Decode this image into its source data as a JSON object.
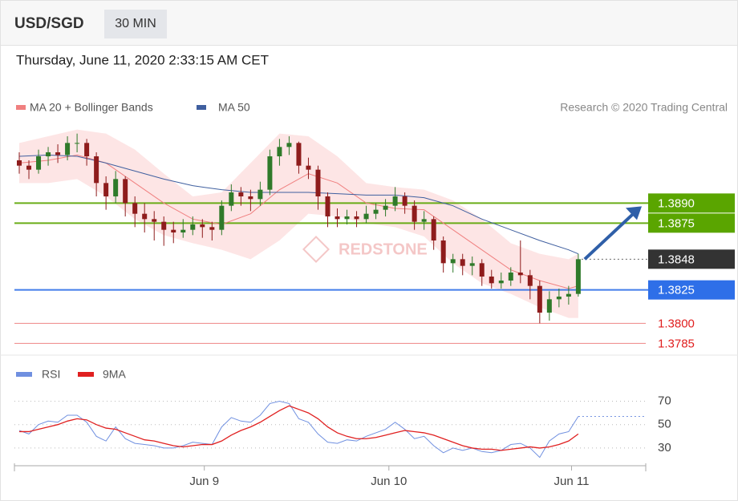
{
  "header": {
    "symbol": "USD/SGD",
    "timeframe": "30 MIN",
    "datetime": "Thursday, June 11, 2020 2:33:15 AM CET"
  },
  "chart_data": [
    {
      "type": "candlestick",
      "credit": "Research © 2020 Trading Central",
      "watermark": "REDSTONE",
      "xlim": [
        -0.5,
        65
      ],
      "ylim": [
        1.3778,
        1.3952
      ],
      "up_color": "#2f7a2a",
      "down_color": "#8e1c1c",
      "ohlc": [
        [
          1.3922,
          1.3928,
          1.3912,
          1.3918
        ],
        [
          1.3918,
          1.3922,
          1.3908,
          1.3915
        ],
        [
          1.3915,
          1.393,
          1.3912,
          1.3925
        ],
        [
          1.3925,
          1.3932,
          1.3918,
          1.3928
        ],
        [
          1.3928,
          1.3934,
          1.392,
          1.3926
        ],
        [
          1.3926,
          1.394,
          1.3922,
          1.3935
        ],
        [
          1.3935,
          1.3942,
          1.3928,
          1.3935
        ],
        [
          1.3935,
          1.3938,
          1.3918,
          1.3925
        ],
        [
          1.3925,
          1.3928,
          1.3895,
          1.3905
        ],
        [
          1.3905,
          1.391,
          1.3885,
          1.3895
        ],
        [
          1.3895,
          1.3914,
          1.389,
          1.3908
        ],
        [
          1.3908,
          1.391,
          1.388,
          1.389
        ],
        [
          1.389,
          1.3895,
          1.3872,
          1.3882
        ],
        [
          1.3882,
          1.389,
          1.3868,
          1.3878
        ],
        [
          1.3878,
          1.3884,
          1.3862,
          1.3876
        ],
        [
          1.3876,
          1.388,
          1.3858,
          1.387
        ],
        [
          1.387,
          1.3876,
          1.386,
          1.3868
        ],
        [
          1.3868,
          1.3878,
          1.3864,
          1.387
        ],
        [
          1.387,
          1.388,
          1.3866,
          1.3874
        ],
        [
          1.3874,
          1.3878,
          1.3864,
          1.3872
        ],
        [
          1.3872,
          1.3876,
          1.3862,
          1.387
        ],
        [
          1.387,
          1.3892,
          1.3866,
          1.3888
        ],
        [
          1.3888,
          1.3904,
          1.3884,
          1.3898
        ],
        [
          1.3898,
          1.3902,
          1.3888,
          1.3895
        ],
        [
          1.3895,
          1.39,
          1.3884,
          1.3893
        ],
        [
          1.3893,
          1.3906,
          1.3888,
          1.39
        ],
        [
          1.39,
          1.393,
          1.3896,
          1.3925
        ],
        [
          1.3925,
          1.3938,
          1.3918,
          1.3932
        ],
        [
          1.3932,
          1.394,
          1.3926,
          1.3935
        ],
        [
          1.3935,
          1.3936,
          1.3912,
          1.3918
        ],
        [
          1.3918,
          1.3924,
          1.3908,
          1.3915
        ],
        [
          1.3915,
          1.3918,
          1.3885,
          1.3895
        ],
        [
          1.3895,
          1.3898,
          1.3872,
          1.388
        ],
        [
          1.388,
          1.3886,
          1.3872,
          1.3878
        ],
        [
          1.3878,
          1.3885,
          1.3874,
          1.388
        ],
        [
          1.388,
          1.3884,
          1.3872,
          1.3878
        ],
        [
          1.3878,
          1.3888,
          1.3875,
          1.3882
        ],
        [
          1.3882,
          1.389,
          1.3878,
          1.3885
        ],
        [
          1.3885,
          1.3893,
          1.388,
          1.3888
        ],
        [
          1.3888,
          1.3902,
          1.3884,
          1.3895
        ],
        [
          1.3895,
          1.3898,
          1.3882,
          1.3888
        ],
        [
          1.3888,
          1.3892,
          1.387,
          1.3876
        ],
        [
          1.3876,
          1.3884,
          1.387,
          1.3878
        ],
        [
          1.3878,
          1.388,
          1.3855,
          1.3862
        ],
        [
          1.3862,
          1.3865,
          1.3838,
          1.3845
        ],
        [
          1.3845,
          1.3852,
          1.3838,
          1.3848
        ],
        [
          1.3848,
          1.3852,
          1.3836,
          1.3843
        ],
        [
          1.3843,
          1.385,
          1.3836,
          1.3845
        ],
        [
          1.3845,
          1.3848,
          1.3828,
          1.3835
        ],
        [
          1.3835,
          1.384,
          1.3826,
          1.383
        ],
        [
          1.383,
          1.3838,
          1.3826,
          1.3832
        ],
        [
          1.3832,
          1.3842,
          1.3828,
          1.3838
        ],
        [
          1.3838,
          1.3862,
          1.383,
          1.3836
        ],
        [
          1.3836,
          1.384,
          1.3818,
          1.3828
        ],
        [
          1.3828,
          1.3832,
          1.38,
          1.3808
        ],
        [
          1.3808,
          1.3824,
          1.3802,
          1.3818
        ],
        [
          1.3818,
          1.3826,
          1.3812,
          1.382
        ],
        [
          1.382,
          1.3828,
          1.3814,
          1.3822
        ],
        [
          1.3822,
          1.3852,
          1.382,
          1.3848
        ]
      ],
      "x": [
        0,
        3,
        6,
        9,
        12,
        15,
        18,
        21,
        24,
        27,
        30,
        33,
        36,
        39,
        42,
        45,
        48,
        51,
        54,
        57,
        58
      ],
      "series": [
        {
          "name": "MA 20 + Bollinger Bands",
          "color": "#f08080",
          "band_color": "#fde0e0",
          "values": [
            1.392,
            1.3922,
            1.3926,
            1.392,
            1.3905,
            1.389,
            1.3878,
            1.3874,
            1.3882,
            1.39,
            1.3912,
            1.3905,
            1.389,
            1.3886,
            1.3885,
            1.387,
            1.3855,
            1.384,
            1.3832,
            1.3826,
            1.3828
          ],
          "upper": [
            1.3935,
            1.394,
            1.3945,
            1.3942,
            1.393,
            1.3912,
            1.3895,
            1.3898,
            1.392,
            1.3942,
            1.394,
            1.3925,
            1.3905,
            1.3902,
            1.39,
            1.3892,
            1.3878,
            1.386,
            1.3852,
            1.3848,
            1.3852
          ],
          "lower": [
            1.3905,
            1.3905,
            1.3908,
            1.3895,
            1.3878,
            1.3866,
            1.386,
            1.3855,
            1.3848,
            1.3862,
            1.3882,
            1.388,
            1.3875,
            1.3872,
            1.3865,
            1.3845,
            1.383,
            1.3822,
            1.3812,
            1.3804,
            1.3804
          ]
        },
        {
          "name": "MA 50",
          "color": "#3f5f9f",
          "values": [
            1.3925,
            1.3926,
            1.3925,
            1.392,
            1.3914,
            1.3908,
            1.3903,
            1.39,
            1.3898,
            1.3898,
            1.3898,
            1.3897,
            1.3896,
            1.3896,
            1.3894,
            1.3888,
            1.3878,
            1.387,
            1.3862,
            1.3855,
            1.3852
          ]
        }
      ],
      "levels": [
        {
          "value": 1.389,
          "label": "1.3890",
          "color": "#5aa500",
          "style": "box"
        },
        {
          "value": 1.3875,
          "label": "1.3875",
          "color": "#5aa500",
          "style": "box"
        },
        {
          "value": 1.3825,
          "label": "1.3825",
          "color": "#2e6fe8",
          "style": "box"
        },
        {
          "value": 1.38,
          "label": "1.3800",
          "color": "#e02020",
          "style": "text"
        },
        {
          "value": 1.3785,
          "label": "1.3785",
          "color": "#e02020",
          "style": "text"
        }
      ],
      "current": {
        "value": 1.3848,
        "label": "1.3848",
        "color": "#333333"
      },
      "arrow_color": "#2f5fa8"
    },
    {
      "type": "line",
      "xlim": [
        -0.5,
        65
      ],
      "ylim": [
        19,
        84
      ],
      "yticks": [
        30,
        50,
        70
      ],
      "xticks": [
        {
          "value": 19.2,
          "label": "Jun 9"
        },
        {
          "value": 38.35,
          "label": "Jun 10"
        },
        {
          "value": 57.3,
          "label": "Jun 11"
        }
      ],
      "series": [
        {
          "name": "RSI",
          "color": "#7090e0",
          "values": [
            45,
            42,
            50,
            53,
            52,
            58,
            58,
            52,
            40,
            36,
            48,
            38,
            34,
            33,
            32,
            30,
            30,
            32,
            35,
            34,
            33,
            48,
            56,
            53,
            52,
            58,
            68,
            70,
            68,
            55,
            52,
            42,
            35,
            34,
            37,
            36,
            40,
            43,
            46,
            52,
            46,
            38,
            40,
            32,
            26,
            30,
            28,
            30,
            27,
            26,
            28,
            33,
            34,
            30,
            22,
            36,
            42,
            44,
            57
          ]
        },
        {
          "name": "9MA",
          "color": "#e02020",
          "values": [
            44,
            44,
            46,
            48,
            50,
            53,
            55,
            54,
            50,
            47,
            46,
            43,
            40,
            37,
            36,
            34,
            32,
            31,
            32,
            33,
            33,
            36,
            41,
            45,
            48,
            52,
            57,
            62,
            66,
            63,
            60,
            55,
            48,
            43,
            40,
            38,
            38,
            39,
            41,
            43,
            45,
            44,
            43,
            41,
            38,
            35,
            32,
            30,
            29,
            29,
            28,
            29,
            30,
            31,
            30,
            31,
            33,
            36,
            42
          ]
        }
      ]
    }
  ]
}
